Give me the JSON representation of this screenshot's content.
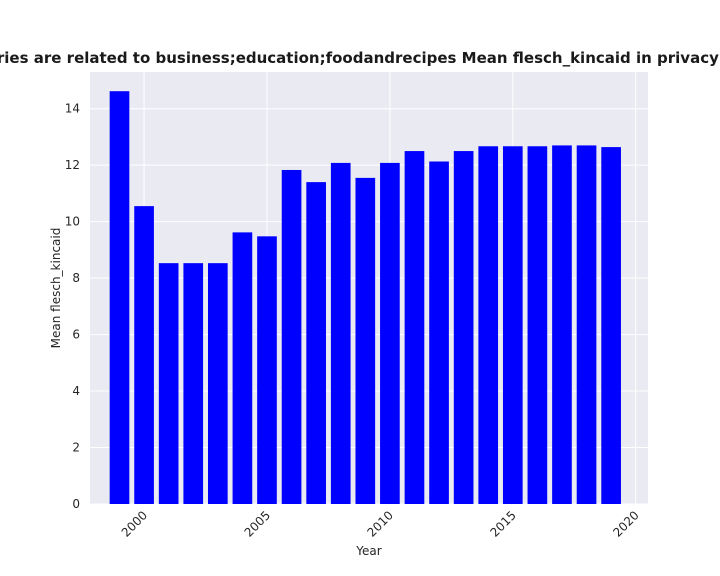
{
  "chart_data": {
    "type": "bar",
    "title": "egories are related to business;education;foodandrecipes Mean flesch_kincaid in privacy polic",
    "xlabel": "Year",
    "ylabel": "Mean flesch_kincaid",
    "x": [
      1999,
      2000,
      2001,
      2002,
      2003,
      2004,
      2005,
      2006,
      2007,
      2008,
      2009,
      2010,
      2011,
      2012,
      2013,
      2014,
      2015,
      2016,
      2017,
      2018,
      2019
    ],
    "values": [
      14.62,
      10.55,
      8.53,
      8.53,
      8.53,
      9.62,
      9.48,
      11.83,
      11.4,
      12.08,
      11.55,
      12.08,
      12.5,
      12.13,
      12.5,
      12.67,
      12.67,
      12.67,
      12.7,
      12.7,
      12.64
    ],
    "xlim": [
      1997.8,
      2020.5
    ],
    "ylim": [
      0,
      15.3
    ],
    "xticks": [
      2000,
      2005,
      2010,
      2015,
      2020
    ],
    "xtick_labels": [
      "2000",
      "2005",
      "2010",
      "2015",
      "2020"
    ],
    "yticks": [
      0,
      2,
      4,
      6,
      8,
      10,
      12,
      14
    ],
    "ytick_labels": [
      "0",
      "2",
      "4",
      "6",
      "8",
      "10",
      "12",
      "14"
    ],
    "bar_color": "#0000ff",
    "background_color": "#eaeaf2",
    "grid": true
  }
}
